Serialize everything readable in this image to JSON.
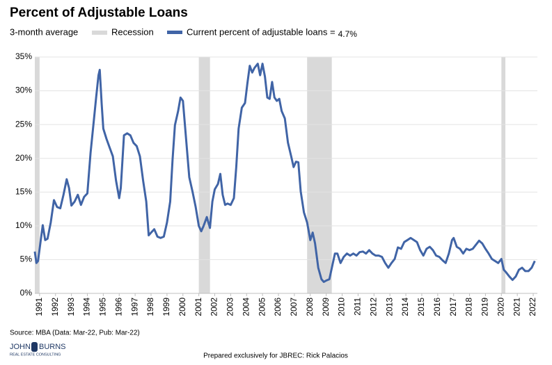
{
  "chart_data": {
    "type": "line",
    "title": "Percent of Adjustable Loans",
    "subtitle": "3-month average",
    "current_label": "4.7%",
    "source": "Source: MBA (Data: Mar-22, Pub: Mar-22)",
    "footer": "Prepared exclusively for JBREC: Rick Palacios",
    "logo": {
      "line1a": "JOHN",
      "line1b": "BURNS",
      "line2": "REAL ESTATE CONSULTING"
    },
    "recession": {
      "name": "Recession",
      "color": "#d9d9d9",
      "spans": [
        [
          1990.7,
          1991.0
        ],
        [
          2001.0,
          2001.7
        ],
        [
          2007.8,
          2009.35
        ],
        [
          2020.0,
          2020.25
        ]
      ]
    },
    "x": [
      1990.7,
      1990.8,
      1990.9,
      1991.1,
      1991.2,
      1991.35,
      1991.5,
      1991.7,
      1991.9,
      1992.1,
      1992.3,
      1992.5,
      1992.7,
      1992.85,
      1993.0,
      1993.2,
      1993.4,
      1993.6,
      1993.8,
      1994.0,
      1994.2,
      1994.4,
      1994.55,
      1994.7,
      1994.78,
      1994.9,
      1995.0,
      1995.2,
      1995.4,
      1995.6,
      1995.8,
      1996.0,
      1996.1,
      1996.3,
      1996.5,
      1996.7,
      1996.9,
      1997.1,
      1997.3,
      1997.5,
      1997.7,
      1997.85,
      1998.0,
      1998.2,
      1998.4,
      1998.6,
      1998.8,
      1999.0,
      1999.2,
      1999.35,
      1999.5,
      1999.7,
      1999.85,
      2000.0,
      2000.2,
      2000.4,
      2000.6,
      2000.8,
      2001.0,
      2001.15,
      2001.3,
      2001.5,
      2001.7,
      2001.85,
      2002.0,
      2002.2,
      2002.35,
      2002.5,
      2002.65,
      2002.8,
      2003.0,
      2003.2,
      2003.35,
      2003.5,
      2003.7,
      2003.9,
      2004.05,
      2004.2,
      2004.35,
      2004.5,
      2004.7,
      2004.85,
      2005.0,
      2005.15,
      2005.3,
      2005.45,
      2005.6,
      2005.75,
      2005.9,
      2006.05,
      2006.2,
      2006.4,
      2006.6,
      2006.8,
      2006.95,
      2007.1,
      2007.25,
      2007.4,
      2007.6,
      2007.8,
      2008.0,
      2008.15,
      2008.3,
      2008.5,
      2008.7,
      2008.85,
      2009.0,
      2009.2,
      2009.4,
      2009.55,
      2009.7,
      2009.9,
      2010.1,
      2010.3,
      2010.5,
      2010.7,
      2010.9,
      2011.1,
      2011.3,
      2011.5,
      2011.7,
      2011.9,
      2012.1,
      2012.3,
      2012.5,
      2012.7,
      2012.9,
      2013.1,
      2013.3,
      2013.5,
      2013.7,
      2013.9,
      2014.1,
      2014.3,
      2014.5,
      2014.7,
      2014.9,
      2015.1,
      2015.3,
      2015.5,
      2015.7,
      2015.9,
      2016.1,
      2016.3,
      2016.5,
      2016.7,
      2016.9,
      2017.0,
      2017.2,
      2017.4,
      2017.6,
      2017.8,
      2018.0,
      2018.2,
      2018.4,
      2018.6,
      2018.8,
      2019.0,
      2019.2,
      2019.4,
      2019.6,
      2019.8,
      2020.0,
      2020.15,
      2020.3,
      2020.5,
      2020.7,
      2020.9,
      2021.1,
      2021.3,
      2021.5,
      2021.7,
      2021.9,
      2022.1
    ],
    "series": [
      {
        "name": "Current percent of adjustable loans =",
        "color": "#4064a6",
        "values": [
          6.2,
          4.5,
          4.8,
          8.4,
          10.1,
          7.9,
          8.1,
          10.5,
          13.8,
          12.8,
          12.6,
          14.6,
          16.9,
          15.6,
          13,
          13.6,
          14.6,
          13.1,
          14.3,
          14.8,
          20.8,
          25.4,
          29,
          32.3,
          33.1,
          28,
          24.4,
          22.9,
          21.6,
          20.3,
          16.7,
          14.1,
          15.6,
          23.4,
          23.7,
          23.4,
          22.3,
          21.8,
          20.3,
          16.7,
          13.6,
          8.6,
          9,
          9.5,
          8.4,
          8.2,
          8.4,
          10.5,
          13.6,
          19.8,
          24.9,
          27,
          29,
          28.5,
          22.9,
          17.2,
          15.1,
          12.8,
          10,
          9.2,
          10,
          11.3,
          9.7,
          13.6,
          15.4,
          16.2,
          17.7,
          14.6,
          13.1,
          13.3,
          13.1,
          14.1,
          18.7,
          24.4,
          27.5,
          28.2,
          31.1,
          33.7,
          32.7,
          33.4,
          34,
          32.3,
          34,
          32.1,
          29,
          28.8,
          31.3,
          29,
          28.5,
          28.8,
          27,
          25.9,
          22.3,
          20.3,
          18.7,
          19.5,
          19.4,
          15.1,
          12,
          10.5,
          7.9,
          9,
          7.4,
          3.8,
          2.1,
          1.7,
          1.9,
          2.1,
          4.3,
          5.9,
          5.9,
          4.5,
          5.4,
          5.9,
          5.6,
          5.9,
          5.6,
          6.1,
          6.2,
          5.9,
          6.4,
          5.9,
          5.6,
          5.6,
          5.4,
          4.5,
          3.8,
          4.5,
          5.1,
          6.8,
          6.6,
          7.6,
          7.9,
          8.2,
          7.9,
          7.6,
          6.4,
          5.6,
          6.6,
          6.9,
          6.4,
          5.6,
          5.4,
          4.9,
          4.5,
          5.9,
          7.9,
          8.2,
          6.9,
          6.6,
          5.9,
          6.6,
          6.4,
          6.6,
          7.2,
          7.8,
          7.4,
          6.6,
          5.9,
          5.1,
          4.8,
          4.5,
          5.1,
          3.5,
          3.1,
          2.5,
          2,
          2.5,
          3.5,
          3.8,
          3.3,
          3.3,
          3.8,
          4.8
        ]
      }
    ],
    "xlim": [
      1990.7,
      2022.26
    ],
    "xticks": [
      1991,
      1992,
      1993,
      1994,
      1995,
      1996,
      1997,
      1998,
      1999,
      2000,
      2001,
      2002,
      2003,
      2004,
      2005,
      2006,
      2007,
      2008,
      2009,
      2010,
      2011,
      2012,
      2013,
      2014,
      2015,
      2016,
      2017,
      2018,
      2019,
      2020,
      2021,
      2022
    ],
    "ylim": [
      0,
      35
    ],
    "yticks": [
      {
        "value": 0,
        "label": "0%"
      },
      {
        "value": 5,
        "label": "5%"
      },
      {
        "value": 10,
        "label": "10%"
      },
      {
        "value": 15,
        "label": "15%"
      },
      {
        "value": 20,
        "label": "20%"
      },
      {
        "value": 25,
        "label": "25%"
      },
      {
        "value": 30,
        "label": "30%"
      },
      {
        "value": 35,
        "label": "35%"
      }
    ],
    "grid": true
  }
}
